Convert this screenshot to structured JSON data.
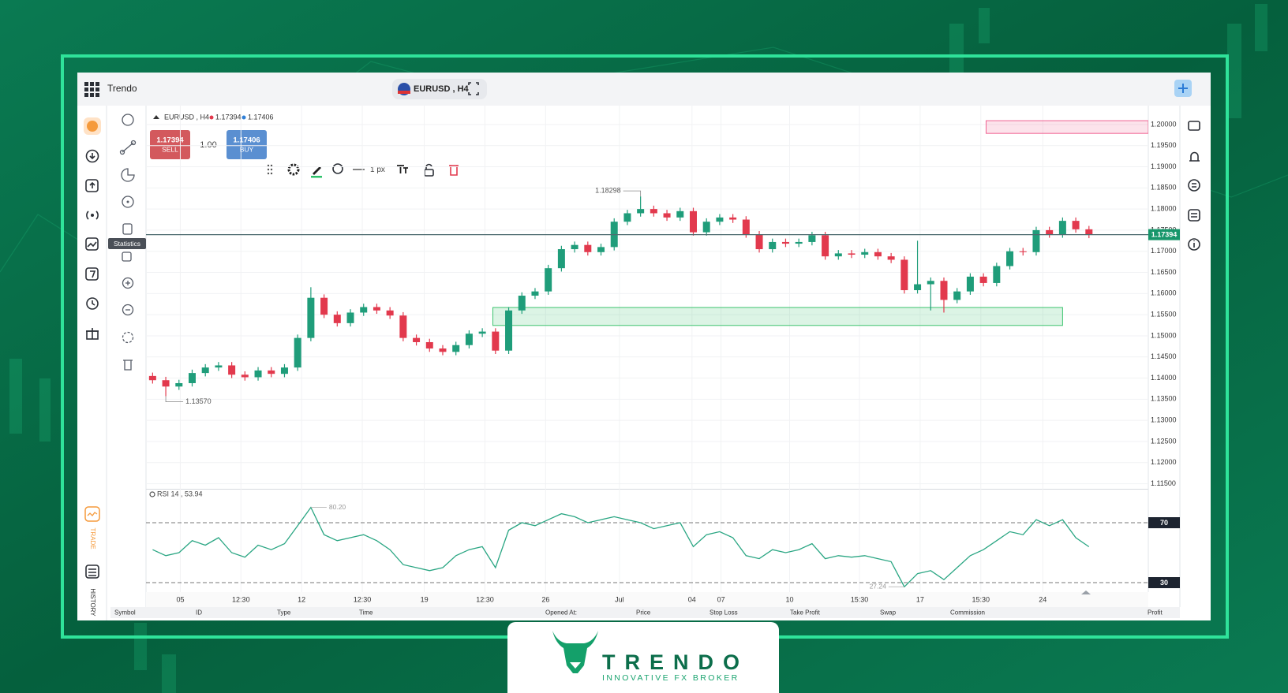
{
  "app": {
    "name": "Trendo",
    "symbol_tab": "EURUSD , H4",
    "tooltip": "Statistics",
    "stroke_width": "1 px",
    "sidebar": {
      "trade": "TRADE",
      "history": "HISTORY"
    }
  },
  "trade_panel": {
    "sell_price": 1.17394,
    "sell": "SELL",
    "lot": "1.00",
    "buy_price": 1.17406,
    "buy": "BUY"
  },
  "chart_data": [
    {
      "type": "candlestick",
      "title": "EURUSD , H4",
      "bid": 1.17394,
      "ask": 1.17406,
      "open": [
        1.1405,
        1.1395,
        1.138,
        1.1388,
        1.1412,
        1.1425,
        1.143,
        1.1408,
        1.1402,
        1.1418,
        1.141,
        1.1425,
        1.1495,
        1.159,
        1.155,
        1.153,
        1.1555,
        1.1568,
        1.156,
        1.1548,
        1.1495,
        1.1485,
        1.147,
        1.1462,
        1.1478,
        1.1505,
        1.151,
        1.1465,
        1.156,
        1.1595,
        1.1605,
        1.166,
        1.1705,
        1.1715,
        1.1698,
        1.171,
        1.177,
        1.179,
        1.18,
        1.179,
        1.178,
        1.1795,
        1.1745,
        1.177,
        1.178,
        1.1775,
        1.174,
        1.1705,
        1.1722,
        1.1718,
        1.1722,
        1.1738,
        1.1688,
        1.1695,
        1.1692,
        1.1698,
        1.1688,
        1.168,
        1.1608,
        1.1622,
        1.163,
        1.1585,
        1.1605,
        1.164,
        1.1625,
        1.1665,
        1.17,
        1.1698,
        1.175,
        1.174,
        1.1772,
        1.1752
      ],
      "high": [
        1.1413,
        1.1403,
        1.1396,
        1.142,
        1.1433,
        1.1438,
        1.1438,
        1.1416,
        1.1426,
        1.1426,
        1.1433,
        1.1503,
        1.1615,
        1.1598,
        1.1558,
        1.1563,
        1.1576,
        1.1576,
        1.1568,
        1.1556,
        1.1503,
        1.1493,
        1.1478,
        1.1486,
        1.1513,
        1.1518,
        1.1518,
        1.1568,
        1.1603,
        1.1613,
        1.1668,
        1.1713,
        1.1723,
        1.1723,
        1.1718,
        1.1778,
        1.1798,
        1.18298,
        1.1808,
        1.1798,
        1.1803,
        1.1803,
        1.1778,
        1.1788,
        1.1788,
        1.1783,
        1.1748,
        1.173,
        1.173,
        1.173,
        1.1746,
        1.1746,
        1.1703,
        1.1703,
        1.1706,
        1.1706,
        1.1696,
        1.1688,
        1.1725,
        1.1638,
        1.1638,
        1.1613,
        1.1648,
        1.1648,
        1.1673,
        1.1708,
        1.1708,
        1.1758,
        1.1758,
        1.178,
        1.178,
        1.176
      ],
      "low": [
        1.1387,
        1.1357,
        1.1372,
        1.138,
        1.1404,
        1.1417,
        1.14,
        1.1394,
        1.1394,
        1.1402,
        1.1402,
        1.1417,
        1.1487,
        1.1542,
        1.1522,
        1.1522,
        1.1547,
        1.1552,
        1.154,
        1.1487,
        1.1477,
        1.1462,
        1.1454,
        1.1454,
        1.147,
        1.1497,
        1.1457,
        1.1457,
        1.1552,
        1.1587,
        1.1597,
        1.1652,
        1.1697,
        1.169,
        1.169,
        1.1702,
        1.1762,
        1.1782,
        1.1782,
        1.1772,
        1.1772,
        1.1737,
        1.1737,
        1.1762,
        1.1767,
        1.1732,
        1.1697,
        1.1697,
        1.171,
        1.171,
        1.1714,
        1.168,
        1.168,
        1.1684,
        1.1684,
        1.168,
        1.1672,
        1.16,
        1.16,
        1.156,
        1.1555,
        1.1577,
        1.1597,
        1.1617,
        1.1617,
        1.1657,
        1.169,
        1.169,
        1.1732,
        1.1732,
        1.1744,
        1.1731
      ],
      "close": [
        1.1395,
        1.138,
        1.1388,
        1.1412,
        1.1425,
        1.143,
        1.1408,
        1.1402,
        1.1418,
        1.141,
        1.1425,
        1.1495,
        1.159,
        1.155,
        1.153,
        1.1555,
        1.1568,
        1.156,
        1.1548,
        1.1495,
        1.1485,
        1.147,
        1.1462,
        1.1478,
        1.1505,
        1.151,
        1.1465,
        1.156,
        1.1595,
        1.1605,
        1.166,
        1.1705,
        1.1715,
        1.1698,
        1.171,
        1.177,
        1.179,
        1.18,
        1.179,
        1.178,
        1.1795,
        1.1745,
        1.177,
        1.178,
        1.1775,
        1.174,
        1.1705,
        1.1722,
        1.1718,
        1.1722,
        1.1738,
        1.1688,
        1.1695,
        1.1692,
        1.1698,
        1.1688,
        1.168,
        1.1608,
        1.1622,
        1.163,
        1.1585,
        1.1605,
        1.164,
        1.1625,
        1.1665,
        1.17,
        1.1698,
        1.175,
        1.174,
        1.1772,
        1.1752,
        1.17394
      ],
      "low_label": "1.13570",
      "last_price": 1.17394,
      "colors": {
        "up": "#1f9d7a",
        "down": "#e2394d"
      },
      "zones": [
        {
          "x": [
            63.7,
            76
          ],
          "y": [
            1.1979,
            1.2009
          ],
          "color": "#f06292"
        },
        {
          "x": [
            26.3,
            69.5
          ],
          "y": [
            1.15245,
            1.1567
          ],
          "color": "#3cc46e"
        }
      ],
      "xlim": [
        0,
        76
      ],
      "xticks": [
        {
          "value": 2.6,
          "label": "05"
        },
        {
          "value": 7.2,
          "label": "12:30"
        },
        {
          "value": 11.8,
          "label": "12"
        },
        {
          "value": 16.4,
          "label": "12:30"
        },
        {
          "value": 21.1,
          "label": "19"
        },
        {
          "value": 25.7,
          "label": "12:30"
        },
        {
          "value": 30.3,
          "label": "26"
        },
        {
          "value": 35.9,
          "label": "Jul"
        },
        {
          "value": 41.4,
          "label": "04"
        },
        {
          "value": 43.6,
          "label": "07"
        },
        {
          "value": 48.8,
          "label": "10"
        },
        {
          "value": 54.1,
          "label": "15:30"
        },
        {
          "value": 58.7,
          "label": "17"
        },
        {
          "value": 63.3,
          "label": "15:30"
        },
        {
          "value": 68.0,
          "label": "24"
        }
      ],
      "ylim": [
        1.1138,
        1.2039
      ],
      "yticks": [
        {
          "value": 1.2,
          "label": "1.20000"
        },
        {
          "value": 1.195,
          "label": "1.19500"
        },
        {
          "value": 1.19,
          "label": "1.19000"
        },
        {
          "value": 1.185,
          "label": "1.18500"
        },
        {
          "value": 1.18,
          "label": "1.18000"
        },
        {
          "value": 1.175,
          "label": "1.17500"
        },
        {
          "value": 1.17,
          "label": "1.17000"
        },
        {
          "value": 1.165,
          "label": "1.16500"
        },
        {
          "value": 1.16,
          "label": "1.16000"
        },
        {
          "value": 1.155,
          "label": "1.15500"
        },
        {
          "value": 1.15,
          "label": "1.15000"
        },
        {
          "value": 1.145,
          "label": "1.14500"
        },
        {
          "value": 1.14,
          "label": "1.14000"
        },
        {
          "value": 1.135,
          "label": "1.13500"
        },
        {
          "value": 1.13,
          "label": "1.13000"
        },
        {
          "value": 1.125,
          "label": "1.12500"
        },
        {
          "value": 1.12,
          "label": "1.12000"
        },
        {
          "value": 1.115,
          "label": "1.11500"
        }
      ],
      "grid": true
    },
    {
      "type": "line",
      "title": "RSI 14 , 53.94",
      "values": [
        52,
        48,
        50,
        58,
        55,
        60,
        50,
        47,
        55,
        52,
        56,
        68,
        80.2,
        62,
        58,
        60,
        62,
        58,
        52,
        42,
        40,
        38,
        40,
        48,
        52,
        54,
        40,
        65,
        70,
        68,
        72,
        76,
        74,
        70,
        72,
        74,
        72,
        70,
        66,
        68,
        70,
        54,
        62,
        64,
        60,
        48,
        46,
        52,
        50,
        52,
        56,
        46,
        48,
        47,
        48,
        46,
        44,
        27.24,
        36,
        38,
        32,
        40,
        48,
        52,
        58,
        64,
        62,
        72,
        68,
        72,
        60,
        53.94
      ],
      "max_label": "80.20",
      "color": "#2aa683",
      "xlim": [
        0,
        76
      ],
      "ylim": [
        23.7,
        92.1
      ],
      "yticks": [
        70,
        30
      ]
    }
  ],
  "positions_table": {
    "columns": [
      "Symbol",
      "ID",
      "Type",
      "Time",
      "Opened At:",
      "Price",
      "Stop Loss",
      "Take Profit",
      "Swap",
      "Commission",
      "Profit"
    ]
  },
  "brand": {
    "name": "TRENDO",
    "tagline": "INNOVATIVE FX BROKER"
  }
}
